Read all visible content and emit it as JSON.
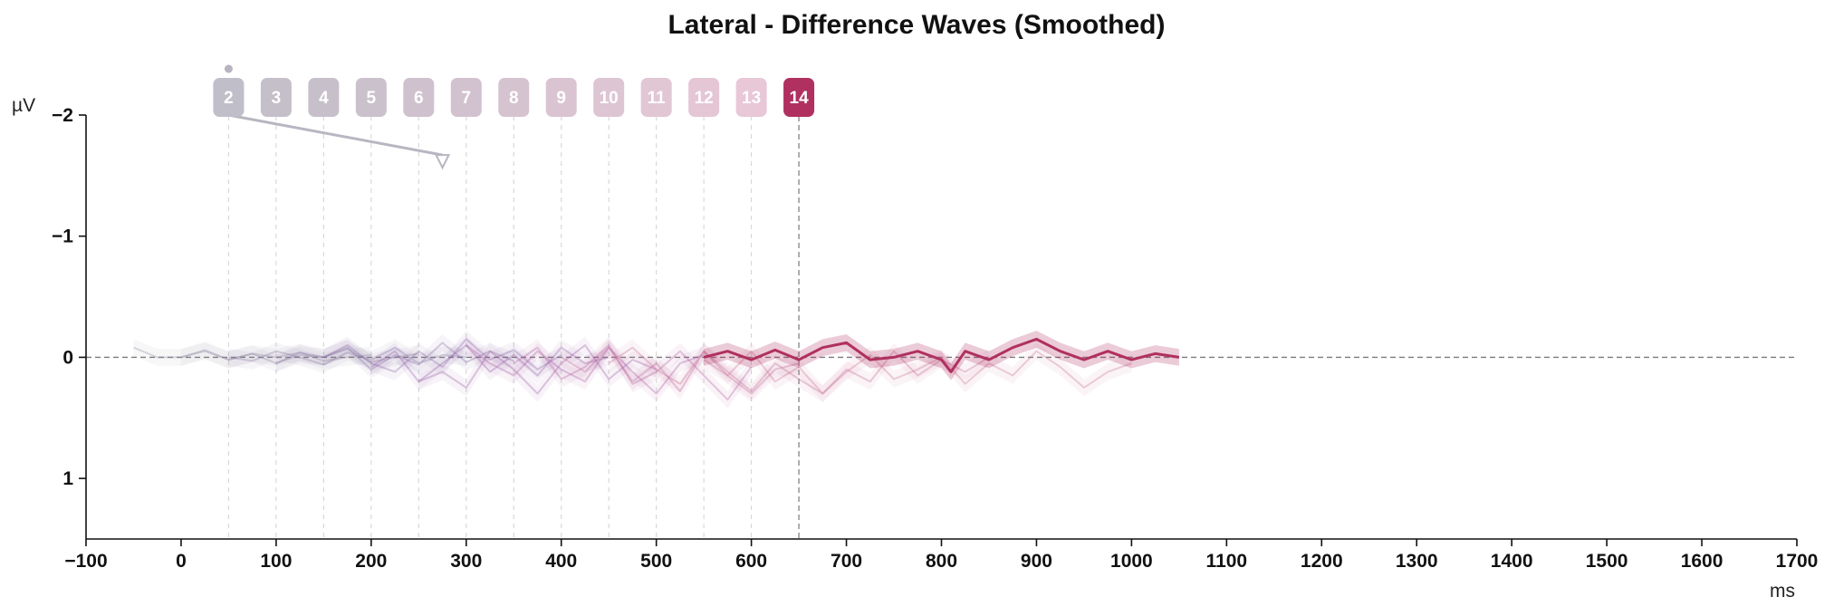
{
  "chart_data": {
    "type": "line",
    "title": "Lateral - Difference Waves (Smoothed)",
    "xlabel": "ms",
    "ylabel": "µV",
    "xlim": [
      -100,
      1700
    ],
    "ylim": [
      1.5,
      -2
    ],
    "y_inverted": true,
    "x_ticks": [
      -100,
      0,
      100,
      200,
      300,
      400,
      500,
      600,
      700,
      800,
      900,
      1000,
      1100,
      1200,
      1300,
      1400,
      1500,
      1600,
      1700
    ],
    "x_tick_labels": [
      "−100",
      "0",
      "100",
      "200",
      "300",
      "400",
      "500",
      "600",
      "700",
      "800",
      "900",
      "1000",
      "1100",
      "1200",
      "1300",
      "1400",
      "1500",
      "1600",
      "1700"
    ],
    "y_ticks": [
      -2,
      -1,
      0,
      1
    ],
    "y_tick_labels": [
      "−2",
      "−1",
      "0",
      "1"
    ],
    "zero_line": true,
    "grid": false,
    "colors": {
      "highlight": "#b0305f",
      "faded": [
        "#9a93a6",
        "#958aa6",
        "#9080a8",
        "#8d76aa",
        "#8f6dac",
        "#9766ad",
        "#a161ac",
        "#ad62a8",
        "#b767a3",
        "#c06c9f",
        "#c67199",
        "#cc7796"
      ]
    },
    "epoch_markers": [
      {
        "label": "2",
        "time": 50
      },
      {
        "label": "3",
        "time": 100
      },
      {
        "label": "4",
        "time": 150
      },
      {
        "label": "5",
        "time": 200
      },
      {
        "label": "6",
        "time": 250
      },
      {
        "label": "7",
        "time": 300
      },
      {
        "label": "8",
        "time": 350
      },
      {
        "label": "9",
        "time": 400
      },
      {
        "label": "10",
        "time": 450
      },
      {
        "label": "11",
        "time": 500
      },
      {
        "label": "12",
        "time": 550
      },
      {
        "label": "13",
        "time": 600
      },
      {
        "label": "14",
        "time": 650
      }
    ],
    "selected_marker": "14",
    "annotation_arrow": {
      "from": [
        50,
        -2
      ],
      "to": [
        275,
        -1.67
      ]
    },
    "series": [
      {
        "marker": "2",
        "highlight": false,
        "x": [
          -50,
          -25,
          0,
          25,
          50,
          75,
          100,
          125,
          150,
          175,
          200
        ],
        "y": [
          -0.08,
          0,
          0,
          -0.05,
          0.02,
          -0.03,
          0,
          -0.04,
          0.03,
          0,
          -0.02
        ]
      },
      {
        "marker": "3",
        "highlight": false,
        "x": [
          0,
          25,
          50,
          75,
          100,
          125,
          150,
          175,
          200,
          225,
          250
        ],
        "y": [
          0,
          -0.06,
          0.02,
          -0.03,
          0.05,
          -0.02,
          0,
          -0.07,
          0.04,
          0,
          -0.03
        ]
      },
      {
        "marker": "4",
        "highlight": false,
        "x": [
          50,
          75,
          100,
          125,
          150,
          175,
          200,
          225,
          250,
          275,
          300
        ],
        "y": [
          0,
          0.03,
          -0.05,
          0,
          0.06,
          -0.04,
          0.02,
          -0.08,
          0.05,
          -0.02,
          0
        ]
      },
      {
        "marker": "5",
        "highlight": false,
        "x": [
          100,
          125,
          150,
          175,
          200,
          225,
          250,
          275,
          300,
          325,
          350
        ],
        "y": [
          0.05,
          -0.04,
          0,
          -0.08,
          0.1,
          -0.02,
          0.06,
          -0.12,
          0.04,
          -0.05,
          0.03
        ]
      },
      {
        "marker": "6",
        "highlight": false,
        "x": [
          150,
          175,
          200,
          225,
          250,
          275,
          300,
          325,
          350,
          375,
          400
        ],
        "y": [
          0,
          -0.1,
          0.05,
          0.12,
          -0.05,
          0.08,
          -0.15,
          0.02,
          -0.06,
          0.1,
          -0.02
        ]
      },
      {
        "marker": "7",
        "highlight": false,
        "x": [
          200,
          225,
          250,
          275,
          300,
          325,
          350,
          375,
          400,
          425,
          450
        ],
        "y": [
          0.08,
          -0.05,
          0.2,
          0.05,
          -0.1,
          0.12,
          -0.02,
          0.15,
          -0.08,
          0.05,
          0
        ]
      },
      {
        "marker": "8",
        "highlight": false,
        "x": [
          250,
          275,
          300,
          325,
          350,
          375,
          400,
          425,
          450,
          475,
          500
        ],
        "y": [
          0.2,
          0.12,
          0.25,
          -0.05,
          0.1,
          0.3,
          0.05,
          -0.1,
          0.18,
          0.02,
          0.1
        ]
      },
      {
        "marker": "9",
        "highlight": false,
        "x": [
          300,
          325,
          350,
          375,
          400,
          425,
          450,
          475,
          500,
          525,
          550
        ],
        "y": [
          -0.1,
          0.05,
          0.15,
          -0.05,
          0.1,
          0.2,
          -0.08,
          0.12,
          0.3,
          0.05,
          -0.02
        ]
      },
      {
        "marker": "10",
        "highlight": false,
        "x": [
          350,
          375,
          400,
          425,
          450,
          475,
          500,
          525,
          550,
          575,
          600
        ],
        "y": [
          0.05,
          -0.08,
          0.18,
          0.08,
          -0.1,
          0.22,
          0.12,
          -0.05,
          0.15,
          0.35,
          0.08
        ]
      },
      {
        "marker": "11",
        "highlight": false,
        "x": [
          400,
          425,
          450,
          475,
          500,
          525,
          550,
          575,
          600,
          625,
          650
        ],
        "y": [
          0,
          0.12,
          -0.08,
          0.2,
          0.05,
          0.28,
          -0.05,
          0.15,
          0.3,
          0.1,
          0.05
        ]
      },
      {
        "marker": "12",
        "highlight": false,
        "x": [
          450,
          475,
          500,
          525,
          550,
          575,
          600,
          625,
          650,
          675,
          700,
          725,
          750,
          775,
          800,
          825,
          850
        ],
        "y": [
          0.05,
          -0.08,
          0.1,
          0.22,
          -0.05,
          0.12,
          0.28,
          0.05,
          0.18,
          0.3,
          0.1,
          0.2,
          -0.05,
          0.15,
          0.02,
          0.12,
          0
        ]
      },
      {
        "marker": "13",
        "highlight": false,
        "x": [
          550,
          575,
          600,
          625,
          650,
          675,
          700,
          725,
          750,
          775,
          800,
          825,
          850,
          875,
          900,
          925,
          950,
          975,
          1000
        ],
        "y": [
          0.02,
          0.15,
          -0.05,
          0.2,
          0.08,
          0.3,
          0.12,
          -0.02,
          0.18,
          0.1,
          0,
          0.22,
          0.05,
          0.15,
          -0.05,
          0.08,
          0.25,
          0.12,
          0.05
        ]
      },
      {
        "marker": "14",
        "highlight": true,
        "x": [
          550,
          575,
          600,
          625,
          650,
          675,
          700,
          725,
          750,
          775,
          800,
          810,
          825,
          850,
          875,
          900,
          925,
          950,
          975,
          1000,
          1025,
          1050
        ],
        "y": [
          0,
          -0.05,
          0.02,
          -0.06,
          0.02,
          -0.08,
          -0.12,
          0.02,
          0,
          -0.05,
          0.02,
          0.12,
          -0.05,
          0.02,
          -0.08,
          -0.15,
          -0.05,
          0.02,
          -0.05,
          0.02,
          -0.03,
          0
        ]
      }
    ]
  }
}
